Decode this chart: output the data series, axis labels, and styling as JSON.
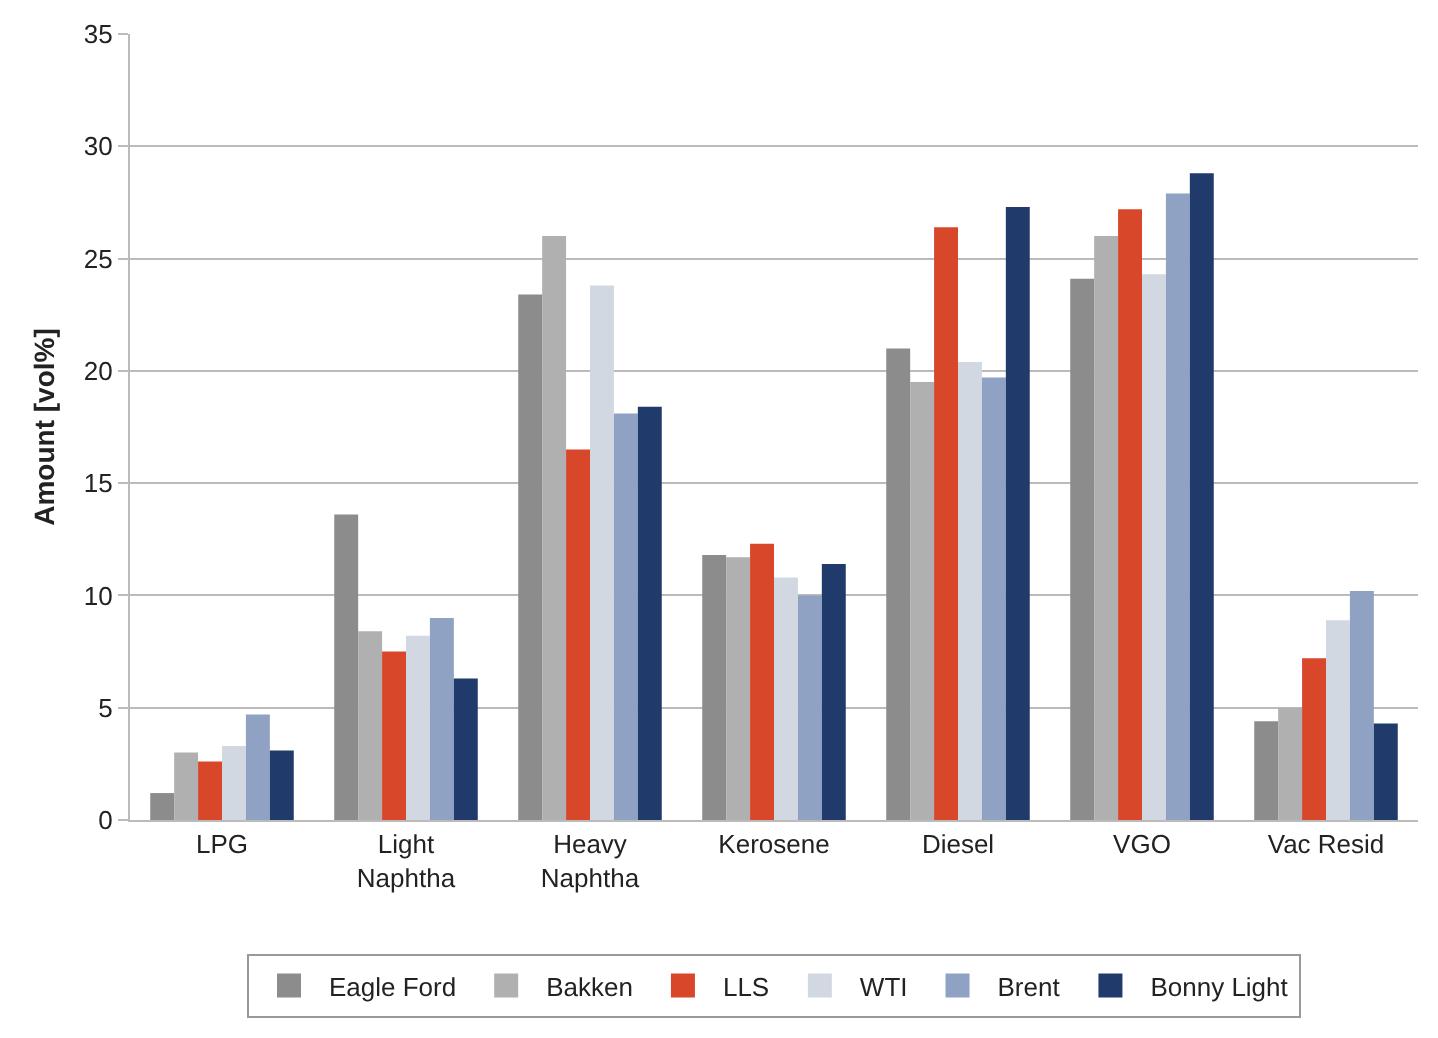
{
  "chart_data": {
    "type": "bar",
    "ylabel": "Amount [vol%]",
    "categories": [
      "LPG",
      "Light Naphtha",
      "Heavy Naphtha",
      "Kerosene",
      "Diesel",
      "VGO",
      "Vac Resid"
    ],
    "series": [
      {
        "name": "Eagle Ford",
        "color": "#8c8c8c",
        "values": [
          1.2,
          13.6,
          23.4,
          11.8,
          21.0,
          24.1,
          4.4
        ]
      },
      {
        "name": "Bakken",
        "color": "#b0b0b0",
        "values": [
          3.0,
          8.4,
          26.0,
          11.7,
          19.5,
          26.0,
          5.0
        ]
      },
      {
        "name": "LLS",
        "color": "#d9472b",
        "values": [
          2.6,
          7.5,
          16.5,
          12.3,
          26.4,
          27.2,
          7.2
        ]
      },
      {
        "name": "WTI",
        "color": "#d2d8e2",
        "values": [
          3.3,
          8.2,
          23.8,
          10.8,
          20.4,
          24.3,
          8.9
        ]
      },
      {
        "name": "Brent",
        "color": "#8fa2c4",
        "values": [
          4.7,
          9.0,
          18.1,
          10.0,
          19.7,
          27.9,
          10.2
        ]
      },
      {
        "name": "Bonny Light",
        "color": "#1f3a6b",
        "values": [
          3.1,
          6.3,
          18.4,
          11.4,
          27.3,
          28.8,
          4.3
        ]
      }
    ],
    "ylim": [
      0,
      35
    ],
    "yticks": [
      0,
      5,
      10,
      15,
      20,
      25,
      30,
      35
    ],
    "grid": "y",
    "legend": "bottom"
  }
}
